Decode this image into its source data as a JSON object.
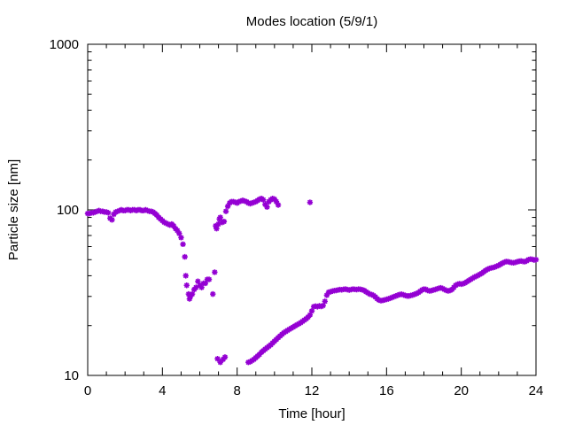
{
  "chart_data": {
    "type": "scatter",
    "title": "Modes location (5/9/1)",
    "xlabel": "Time [hour]",
    "ylabel": "Particle size [nm]",
    "xlim": [
      0,
      24
    ],
    "ylim": [
      10,
      1000
    ],
    "yscale": "log",
    "grid": false,
    "marker_color": "#9400d3",
    "marker": "star",
    "x_ticks": [
      "0",
      "4",
      "8",
      "12",
      "16",
      "20",
      "24"
    ],
    "x_tick_values": [
      0,
      4,
      8,
      12,
      16,
      20,
      24
    ],
    "y_ticks": [
      "10",
      "100",
      "1000"
    ],
    "y_tick_values": [
      10,
      100,
      1000
    ],
    "points": [
      [
        0.0,
        95
      ],
      [
        0.1,
        95
      ],
      [
        0.2,
        96
      ],
      [
        0.3,
        96
      ],
      [
        0.4,
        97
      ],
      [
        0.5,
        98
      ],
      [
        0.6,
        99
      ],
      [
        0.7,
        98
      ],
      [
        0.8,
        98
      ],
      [
        0.9,
        97
      ],
      [
        1.0,
        97
      ],
      [
        1.1,
        96
      ],
      [
        1.2,
        89
      ],
      [
        1.3,
        87
      ],
      [
        1.4,
        94
      ],
      [
        1.5,
        97
      ],
      [
        1.6,
        98
      ],
      [
        1.7,
        99
      ],
      [
        1.8,
        100
      ],
      [
        1.9,
        99
      ],
      [
        2.0,
        99
      ],
      [
        2.1,
        100
      ],
      [
        2.2,
        100
      ],
      [
        2.3,
        99
      ],
      [
        2.4,
        100
      ],
      [
        2.5,
        100
      ],
      [
        2.6,
        99
      ],
      [
        2.7,
        100
      ],
      [
        2.8,
        100
      ],
      [
        2.9,
        99
      ],
      [
        3.0,
        99
      ],
      [
        3.1,
        100
      ],
      [
        3.2,
        99
      ],
      [
        3.3,
        98
      ],
      [
        3.4,
        98
      ],
      [
        3.5,
        97
      ],
      [
        3.6,
        95
      ],
      [
        3.7,
        93
      ],
      [
        3.8,
        90
      ],
      [
        3.9,
        88
      ],
      [
        4.0,
        86
      ],
      [
        4.1,
        84
      ],
      [
        4.2,
        83
      ],
      [
        4.3,
        82
      ],
      [
        4.4,
        81
      ],
      [
        4.5,
        82
      ],
      [
        4.6,
        80
      ],
      [
        4.7,
        77
      ],
      [
        4.8,
        75
      ],
      [
        4.9,
        72
      ],
      [
        5.0,
        68
      ],
      [
        5.1,
        62
      ],
      [
        5.2,
        52
      ],
      [
        5.25,
        40
      ],
      [
        5.3,
        35
      ],
      [
        5.4,
        31
      ],
      [
        5.45,
        29
      ],
      [
        5.5,
        30
      ],
      [
        5.6,
        31
      ],
      [
        5.7,
        33
      ],
      [
        5.8,
        34
      ],
      [
        5.9,
        37
      ],
      [
        6.0,
        35
      ],
      [
        6.1,
        34
      ],
      [
        6.2,
        36
      ],
      [
        6.3,
        36
      ],
      [
        6.4,
        38
      ],
      [
        6.5,
        38
      ],
      [
        6.7,
        31
      ],
      [
        6.8,
        42
      ],
      [
        6.85,
        80
      ],
      [
        6.9,
        77
      ],
      [
        7.0,
        82
      ],
      [
        7.05,
        88
      ],
      [
        7.1,
        90
      ],
      [
        7.2,
        84
      ],
      [
        7.3,
        85
      ],
      [
        7.4,
        98
      ],
      [
        7.5,
        105
      ],
      [
        7.6,
        110
      ],
      [
        7.7,
        112
      ],
      [
        7.8,
        112
      ],
      [
        7.9,
        111
      ],
      [
        8.0,
        110
      ],
      [
        8.1,
        112
      ],
      [
        8.2,
        113
      ],
      [
        8.3,
        114
      ],
      [
        8.4,
        113
      ],
      [
        8.5,
        112
      ],
      [
        8.6,
        110
      ],
      [
        8.7,
        109
      ],
      [
        8.8,
        110
      ],
      [
        8.9,
        111
      ],
      [
        9.0,
        112
      ],
      [
        9.1,
        114
      ],
      [
        9.2,
        116
      ],
      [
        9.3,
        117
      ],
      [
        9.4,
        115
      ],
      [
        9.5,
        108
      ],
      [
        9.6,
        104
      ],
      [
        9.7,
        112
      ],
      [
        9.8,
        115
      ],
      [
        9.9,
        117
      ],
      [
        10.0,
        116
      ],
      [
        10.1,
        112
      ],
      [
        10.2,
        107
      ],
      [
        11.9,
        111
      ],
      [
        6.95,
        12.6
      ],
      [
        7.1,
        12.0
      ],
      [
        7.25,
        12.5
      ],
      [
        7.35,
        12.9
      ],
      [
        8.6,
        12.0
      ],
      [
        8.7,
        12.1
      ],
      [
        8.8,
        12.3
      ],
      [
        8.9,
        12.5
      ],
      [
        9.0,
        12.8
      ],
      [
        9.1,
        13.1
      ],
      [
        9.2,
        13.4
      ],
      [
        9.3,
        13.8
      ],
      [
        9.4,
        14.1
      ],
      [
        9.5,
        14.4
      ],
      [
        9.6,
        14.7
      ],
      [
        9.7,
        15.0
      ],
      [
        9.8,
        15.3
      ],
      [
        9.9,
        15.7
      ],
      [
        10.0,
        16.1
      ],
      [
        10.1,
        16.5
      ],
      [
        10.2,
        16.9
      ],
      [
        10.3,
        17.3
      ],
      [
        10.4,
        17.7
      ],
      [
        10.5,
        18.1
      ],
      [
        10.6,
        18.4
      ],
      [
        10.7,
        18.7
      ],
      [
        10.8,
        19.0
      ],
      [
        10.9,
        19.3
      ],
      [
        11.0,
        19.6
      ],
      [
        11.1,
        19.9
      ],
      [
        11.2,
        20.2
      ],
      [
        11.3,
        20.5
      ],
      [
        11.4,
        20.8
      ],
      [
        11.5,
        21.2
      ],
      [
        11.6,
        21.6
      ],
      [
        11.7,
        22.0
      ],
      [
        11.8,
        22.5
      ],
      [
        11.9,
        23.2
      ],
      [
        12.0,
        24.5
      ],
      [
        12.1,
        26.0
      ],
      [
        12.2,
        26.2
      ],
      [
        12.3,
        26.0
      ],
      [
        12.4,
        26.3
      ],
      [
        12.5,
        26.1
      ],
      [
        12.6,
        26.4
      ],
      [
        12.7,
        28.0
      ],
      [
        12.8,
        30.5
      ],
      [
        12.9,
        31.8
      ],
      [
        13.0,
        32.0
      ],
      [
        13.1,
        32.3
      ],
      [
        13.2,
        32.5
      ],
      [
        13.3,
        32.6
      ],
      [
        13.4,
        32.8
      ],
      [
        13.5,
        33.0
      ],
      [
        13.6,
        32.9
      ],
      [
        13.7,
        33.1
      ],
      [
        13.8,
        33.2
      ],
      [
        13.9,
        33.0
      ],
      [
        14.0,
        32.8
      ],
      [
        14.1,
        33.0
      ],
      [
        14.2,
        33.2
      ],
      [
        14.3,
        33.1
      ],
      [
        14.4,
        33.0
      ],
      [
        14.5,
        33.2
      ],
      [
        14.6,
        33.1
      ],
      [
        14.7,
        32.9
      ],
      [
        14.8,
        32.6
      ],
      [
        14.9,
        32.0
      ],
      [
        15.0,
        31.5
      ],
      [
        15.1,
        31.0
      ],
      [
        15.2,
        30.8
      ],
      [
        15.3,
        30.4
      ],
      [
        15.4,
        29.8
      ],
      [
        15.5,
        29.0
      ],
      [
        15.6,
        28.5
      ],
      [
        15.7,
        28.3
      ],
      [
        15.8,
        28.4
      ],
      [
        15.9,
        28.6
      ],
      [
        16.0,
        28.8
      ],
      [
        16.1,
        29.0
      ],
      [
        16.2,
        29.3
      ],
      [
        16.3,
        29.6
      ],
      [
        16.4,
        29.9
      ],
      [
        16.5,
        30.2
      ],
      [
        16.6,
        30.5
      ],
      [
        16.7,
        30.8
      ],
      [
        16.8,
        30.9
      ],
      [
        16.9,
        30.7
      ],
      [
        17.0,
        30.4
      ],
      [
        17.1,
        30.2
      ],
      [
        17.2,
        30.2
      ],
      [
        17.3,
        30.4
      ],
      [
        17.4,
        30.6
      ],
      [
        17.5,
        30.9
      ],
      [
        17.6,
        31.2
      ],
      [
        17.7,
        31.6
      ],
      [
        17.8,
        32.2
      ],
      [
        17.9,
        32.8
      ],
      [
        18.0,
        33.2
      ],
      [
        18.1,
        33.1
      ],
      [
        18.2,
        32.6
      ],
      [
        18.3,
        32.4
      ],
      [
        18.4,
        32.5
      ],
      [
        18.5,
        32.8
      ],
      [
        18.6,
        33.0
      ],
      [
        18.7,
        33.3
      ],
      [
        18.8,
        33.6
      ],
      [
        18.9,
        33.8
      ],
      [
        19.0,
        33.5
      ],
      [
        19.1,
        33.0
      ],
      [
        19.2,
        32.6
      ],
      [
        19.3,
        32.4
      ],
      [
        19.4,
        32.6
      ],
      [
        19.5,
        33.0
      ],
      [
        19.6,
        34.0
      ],
      [
        19.7,
        35.0
      ],
      [
        19.8,
        35.5
      ],
      [
        19.9,
        35.8
      ],
      [
        20.0,
        35.6
      ],
      [
        20.1,
        35.8
      ],
      [
        20.2,
        36.2
      ],
      [
        20.3,
        36.8
      ],
      [
        20.4,
        37.4
      ],
      [
        20.5,
        38.0
      ],
      [
        20.6,
        38.6
      ],
      [
        20.7,
        39.2
      ],
      [
        20.8,
        39.7
      ],
      [
        20.9,
        40.2
      ],
      [
        21.0,
        40.8
      ],
      [
        21.1,
        41.4
      ],
      [
        21.2,
        42.2
      ],
      [
        21.3,
        43.0
      ],
      [
        21.4,
        43.7
      ],
      [
        21.5,
        44.2
      ],
      [
        21.6,
        44.6
      ],
      [
        21.7,
        44.8
      ],
      [
        21.8,
        45.2
      ],
      [
        21.9,
        45.7
      ],
      [
        22.0,
        46.2
      ],
      [
        22.1,
        46.9
      ],
      [
        22.2,
        47.6
      ],
      [
        22.3,
        48.2
      ],
      [
        22.4,
        48.7
      ],
      [
        22.5,
        48.6
      ],
      [
        22.6,
        48.3
      ],
      [
        22.7,
        48.0
      ],
      [
        22.8,
        47.9
      ],
      [
        22.9,
        48.2
      ],
      [
        23.0,
        48.6
      ],
      [
        23.1,
        48.9
      ],
      [
        23.2,
        49.1
      ],
      [
        23.3,
        48.8
      ],
      [
        23.4,
        48.6
      ],
      [
        23.5,
        49.2
      ],
      [
        23.6,
        50.0
      ],
      [
        23.7,
        50.4
      ],
      [
        23.8,
        50.2
      ],
      [
        23.9,
        49.8
      ],
      [
        24.0,
        50.0
      ]
    ]
  }
}
